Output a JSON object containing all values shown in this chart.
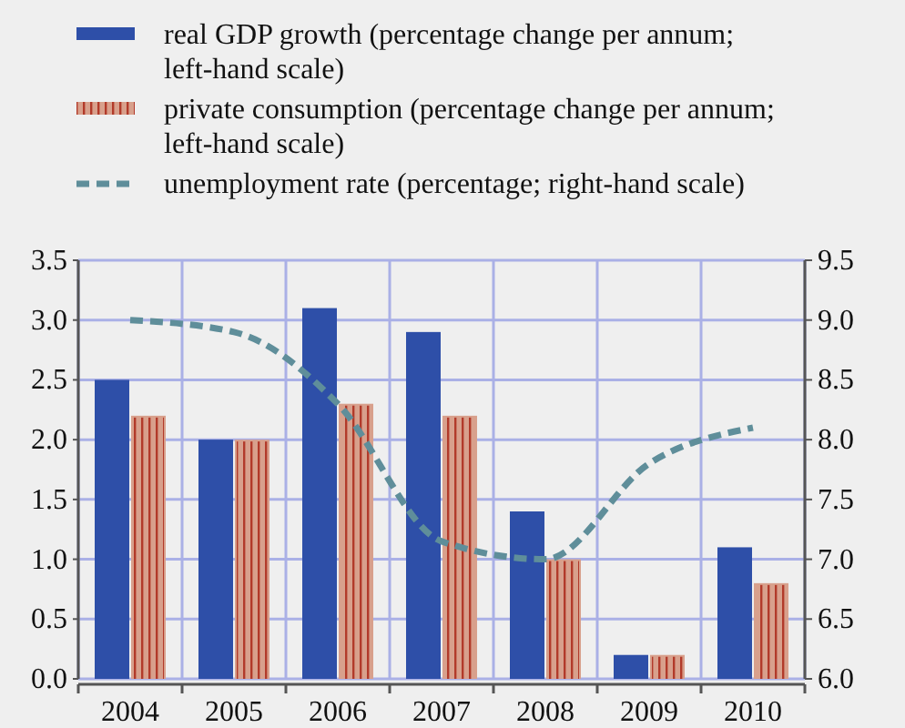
{
  "chart_data": {
    "type": "bar",
    "categories": [
      "2004",
      "2005",
      "2006",
      "2007",
      "2008",
      "2009",
      "2010"
    ],
    "series": [
      {
        "name": "real GDP growth (percentage change per annum; left-hand scale)",
        "color": "#2e4fa8",
        "values": [
          2.5,
          2.0,
          3.1,
          2.9,
          1.4,
          0.2,
          1.1
        ]
      },
      {
        "name": "private consumption (percentage change per annum; left-hand scale)",
        "color": "#d8a08c",
        "values": [
          2.2,
          2.0,
          2.3,
          2.2,
          1.0,
          0.2,
          0.8
        ]
      },
      {
        "name": "unemployment rate (percentage; right-hand scale)",
        "type": "line",
        "axis": "y2",
        "color": "#5f8e9a",
        "line_style": "dashed",
        "values": [
          9.0,
          8.9,
          8.3,
          7.15,
          7.0,
          7.8,
          8.1
        ]
      }
    ],
    "ylim": [
      0,
      3.5
    ],
    "yticks": [
      {
        "value": 0,
        "label": "0.0"
      },
      {
        "value": 0.5,
        "label": "0.5"
      },
      {
        "value": 1,
        "label": "1.0"
      },
      {
        "value": 1.5,
        "label": "1.5"
      },
      {
        "value": 2,
        "label": "2.0"
      },
      {
        "value": 2.5,
        "label": "2.5"
      },
      {
        "value": 3,
        "label": "3.0"
      },
      {
        "value": 3.5,
        "label": "3.5"
      }
    ],
    "y2lim": [
      6,
      9.5
    ],
    "y2ticks": [
      {
        "value": 6,
        "label": "6.0"
      },
      {
        "value": 6.5,
        "label": "6.5"
      },
      {
        "value": 7,
        "label": "7.0"
      },
      {
        "value": 7.5,
        "label": "7.5"
      },
      {
        "value": 8,
        "label": "8.0"
      },
      {
        "value": 8.5,
        "label": "8.5"
      },
      {
        "value": 9,
        "label": "9.0"
      },
      {
        "value": 9.5,
        "label": "9.5"
      }
    ],
    "grid": true,
    "legend": "top",
    "marker": "none"
  }
}
